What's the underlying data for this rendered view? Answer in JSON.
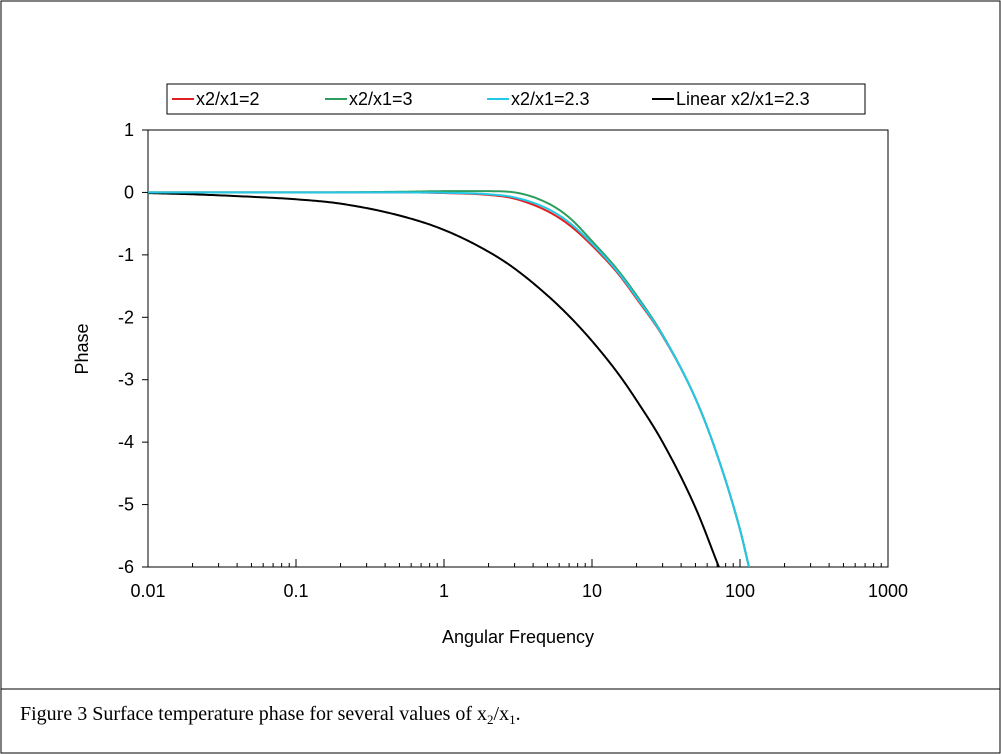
{
  "caption": {
    "prefix": "Figure 3 Surface temperature phase for several values of x",
    "sub1": "2",
    "mid": "/x",
    "sub2": "1",
    "suffix": "."
  },
  "chart_data": {
    "type": "line",
    "title": "",
    "xlabel": "Angular Frequency",
    "ylabel": "Phase",
    "xscale": "log",
    "xlim": [
      0.01,
      1000
    ],
    "ylim": [
      -6,
      1
    ],
    "xticks": [
      0.01,
      0.1,
      1,
      10,
      100,
      1000
    ],
    "xtick_labels": [
      "0.01",
      "0.1",
      "1",
      "10",
      "100",
      "1000"
    ],
    "yticks": [
      1,
      0,
      -1,
      -2,
      -3,
      -4,
      -5,
      -6
    ],
    "ytick_labels": [
      "1",
      "0",
      "-1",
      "-2",
      "-3",
      "-4",
      "-5",
      "-6"
    ],
    "grid": false,
    "legend_position": "top",
    "series": [
      {
        "name": "x2/x1=2",
        "color": "#e02020",
        "x": [
          0.01,
          0.1,
          0.5,
          1,
          2,
          3,
          5,
          7,
          10,
          15,
          20,
          30,
          50,
          70,
          100,
          115
        ],
        "y": [
          0.0,
          0.0,
          0.0,
          -0.01,
          -0.04,
          -0.1,
          -0.3,
          -0.52,
          -0.85,
          -1.3,
          -1.7,
          -2.3,
          -3.3,
          -4.2,
          -5.4,
          -6.0
        ]
      },
      {
        "name": "x2/x1=3",
        "color": "#2e9e5e",
        "x": [
          0.01,
          0.1,
          0.5,
          1,
          2,
          3,
          5,
          7,
          10,
          15,
          20,
          30,
          50,
          70,
          100,
          115
        ],
        "y": [
          0.0,
          0.0,
          0.01,
          0.02,
          0.02,
          0.0,
          -0.17,
          -0.4,
          -0.78,
          -1.25,
          -1.65,
          -2.28,
          -3.3,
          -4.2,
          -5.4,
          -6.0
        ]
      },
      {
        "name": "x2/x1=2.3",
        "color": "#22c8e8",
        "x": [
          0.01,
          0.1,
          0.5,
          1,
          2,
          3,
          5,
          7,
          10,
          15,
          20,
          30,
          50,
          70,
          100,
          115
        ],
        "y": [
          0.0,
          0.0,
          0.0,
          -0.005,
          -0.03,
          -0.08,
          -0.26,
          -0.48,
          -0.82,
          -1.28,
          -1.68,
          -2.29,
          -3.3,
          -4.2,
          -5.4,
          -6.0
        ]
      },
      {
        "name": "Linear x2/x1=2.3",
        "color": "#000000",
        "x": [
          0.01,
          0.02,
          0.05,
          0.1,
          0.2,
          0.5,
          1,
          2,
          3,
          5,
          7,
          10,
          15,
          20,
          30,
          50,
          72
        ],
        "y": [
          -0.01,
          -0.03,
          -0.07,
          -0.11,
          -0.18,
          -0.37,
          -0.6,
          -0.95,
          -1.22,
          -1.65,
          -1.98,
          -2.38,
          -2.9,
          -3.33,
          -4.0,
          -5.05,
          -6.0
        ]
      }
    ]
  }
}
